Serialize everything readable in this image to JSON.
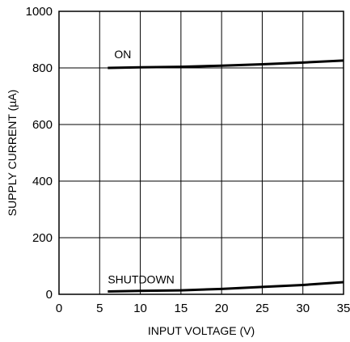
{
  "chart_data": {
    "type": "line",
    "xlabel": "INPUT VOLTAGE (V)",
    "ylabel": "SUPPLY CURRENT (µA)",
    "xlim": [
      0,
      35
    ],
    "ylim": [
      0,
      1000
    ],
    "x_ticks": [
      0,
      5,
      10,
      15,
      20,
      25,
      30,
      35
    ],
    "y_ticks": [
      0,
      200,
      400,
      600,
      800,
      1000
    ],
    "grid": true,
    "legend": "none",
    "series": [
      {
        "name": "ON",
        "x": [
          6,
          10,
          15,
          20,
          25,
          30,
          35
        ],
        "y": [
          800,
          802,
          804,
          808,
          813,
          819,
          826
        ]
      },
      {
        "name": "SHUTDOWN",
        "x": [
          6,
          10,
          15,
          20,
          25,
          30,
          35
        ],
        "y": [
          10,
          12,
          14,
          19,
          26,
          33,
          43
        ]
      }
    ]
  }
}
